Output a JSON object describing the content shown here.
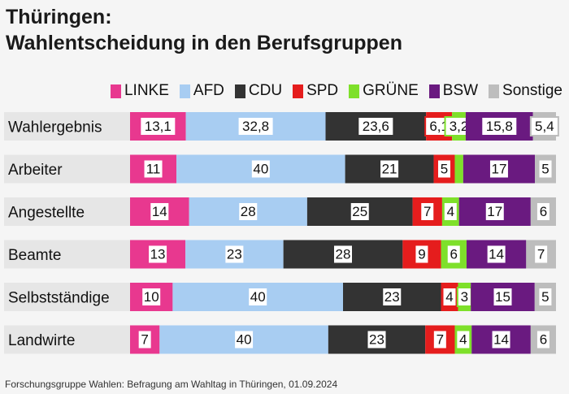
{
  "title_line1": "Thüringen:",
  "title_line2": "Wahlentscheidung in den Berufsgruppen",
  "source": "Forschungsgruppe Wahlen: Befragung am Wahltag in Thüringen, 01.09.2024",
  "colors": {
    "LINKE": "#e8388f",
    "AFD": "#a8cdf2",
    "CDU": "#333333",
    "SPD": "#e51d1d",
    "GRÜNE": "#7ee02a",
    "BSW": "#6a1a80",
    "Sonstige": "#bdbdbd",
    "row_label_bg": "#e6e6e6",
    "divider": "#ffffff"
  },
  "chart_data": {
    "type": "bar",
    "orientation": "horizontal",
    "stacked": true,
    "legend_position": "top-right",
    "categories": [
      "Wahlergebnis",
      "Arbeiter",
      "Angestellte",
      "Beamte",
      "Selbstständige",
      "Landwirte"
    ],
    "series": [
      {
        "name": "LINKE",
        "values": [
          13.1,
          11,
          14,
          13,
          10,
          7
        ],
        "labels": [
          "13,1",
          "11",
          "14",
          "13",
          "10",
          "7"
        ]
      },
      {
        "name": "AFD",
        "values": [
          32.8,
          40,
          28,
          23,
          40,
          40
        ],
        "labels": [
          "32,8",
          "40",
          "28",
          "23",
          "40",
          "40"
        ]
      },
      {
        "name": "CDU",
        "values": [
          23.6,
          21,
          25,
          28,
          23,
          23
        ],
        "labels": [
          "23,6",
          "21",
          "25",
          "28",
          "23",
          "23"
        ]
      },
      {
        "name": "SPD",
        "values": [
          6.1,
          5,
          7,
          9,
          4,
          7
        ],
        "labels": [
          "6,1",
          "5",
          "7",
          "9",
          "4",
          "7"
        ]
      },
      {
        "name": "GRÜNE",
        "values": [
          3.2,
          2,
          4,
          6,
          3,
          4
        ],
        "labels": [
          "3,2",
          "",
          "4",
          "6",
          "3",
          "4"
        ]
      },
      {
        "name": "BSW",
        "values": [
          15.8,
          17,
          17,
          14,
          15,
          14
        ],
        "labels": [
          "15,8",
          "17",
          "17",
          "14",
          "15",
          "14"
        ]
      },
      {
        "name": "Sonstige",
        "values": [
          5.4,
          5,
          6,
          7,
          5,
          6
        ],
        "labels": [
          "5,4",
          "5",
          "6",
          "7",
          "5",
          "6"
        ]
      }
    ]
  }
}
